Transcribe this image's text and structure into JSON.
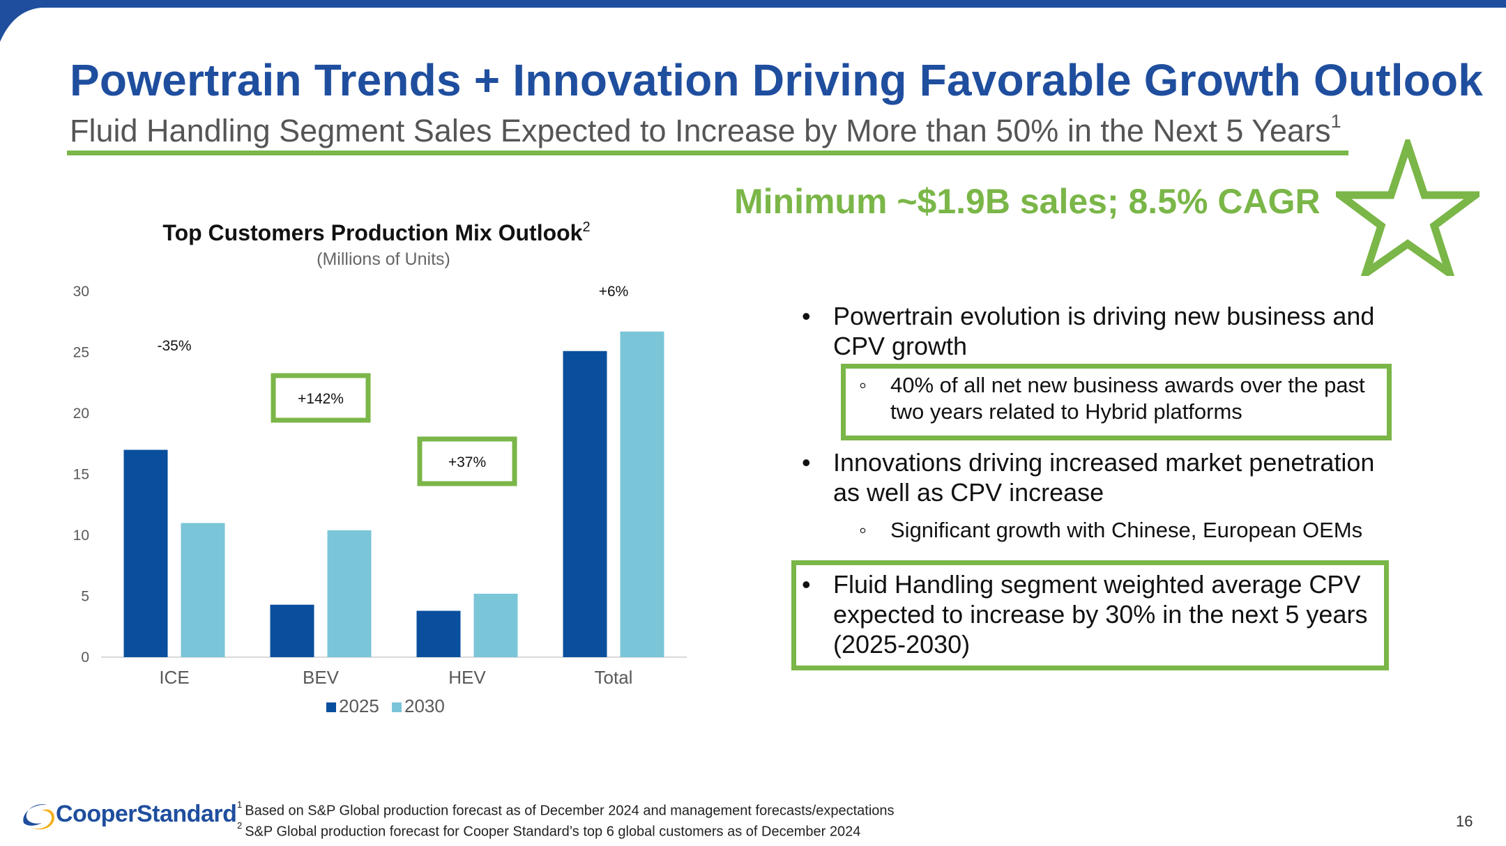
{
  "slide": {
    "title": "Powertrain Trends + Innovation Driving Favorable Growth Outlook",
    "subtitle": "Fluid Handling Segment Sales Expected to Increase by More than 50% in the Next 5 Years",
    "subtitle_footnote": "1",
    "highlight": "Minimum ~$1.9B sales; 8.5% CAGR",
    "page_number": "16",
    "accent_green": "#7ab648",
    "brand_blue": "#1f4e9e",
    "logo_text": "CooperStandard"
  },
  "bullets": {
    "item1": {
      "line1": "Powertrain evolution is driving new business and",
      "line2": "CPV growth"
    },
    "item1_sub": {
      "line1": "40% of all net new business awards over the past",
      "line2": "two years related to Hybrid platforms"
    },
    "item2": {
      "line1": "Innovations driving increased market penetration",
      "line2": "as well as CPV increase"
    },
    "item2_sub": {
      "line1": "Significant growth with Chinese, European OEMs"
    },
    "item3": {
      "line1": "Fluid Handling segment weighted average CPV",
      "line2": "expected to increase by 30% in the next 5 years",
      "line3": "(2025-2030)"
    },
    "bullet_char": "•",
    "sub_bullet_char": "◦"
  },
  "footnotes": {
    "n1_marker": "1",
    "n1": "Based on S&P Global production forecast as of December 2024 and management forecasts/expectations",
    "n2_marker": "2",
    "n2": "S&P Global production forecast for Cooper Standard’s top 6 global customers as of December 2024"
  },
  "chart_data": {
    "type": "bar",
    "title": "Top Customers Production Mix Outlook",
    "title_footnote": "2",
    "subtitle": "(Millions of Units)",
    "categories": [
      "ICE",
      "BEV",
      "HEV",
      "Total"
    ],
    "series": [
      {
        "name": "2025",
        "values": [
          17.0,
          4.3,
          3.8,
          25.1
        ],
        "color": "#0a4f9e"
      },
      {
        "name": "2030",
        "values": [
          11.0,
          10.4,
          5.2,
          26.7
        ],
        "color": "#7ac5d8"
      }
    ],
    "y_ticks": [
      0,
      5,
      10,
      15,
      20,
      25,
      30
    ],
    "ylim": [
      0,
      30
    ],
    "grid": false,
    "legend_position": "bottom",
    "annotations": [
      {
        "category": "ICE",
        "text": "-35%",
        "boxed": false
      },
      {
        "category": "BEV",
        "text": "+142%",
        "boxed": true
      },
      {
        "category": "HEV",
        "text": "+37%",
        "boxed": true
      },
      {
        "category": "Total",
        "text": "+6%",
        "boxed": false
      }
    ]
  }
}
